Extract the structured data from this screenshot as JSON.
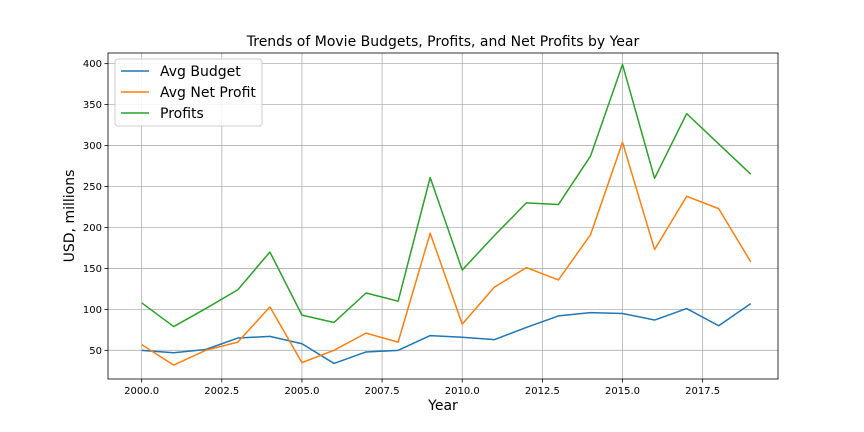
{
  "chart_data": {
    "type": "line",
    "title": "Trends of Movie Budgets, Profits, and Net Profits by Year",
    "xlabel": "Year",
    "ylabel": "USD, millions",
    "xlim": [
      1998.95,
      2019.85
    ],
    "ylim": [
      15,
      413
    ],
    "x_ticks": [
      2000.0,
      2002.5,
      2005.0,
      2007.5,
      2010.0,
      2012.5,
      2015.0,
      2017.5
    ],
    "x_tick_labels": [
      "2000.0",
      "2002.5",
      "2005.0",
      "2007.5",
      "2010.0",
      "2012.5",
      "2015.0",
      "2017.5"
    ],
    "y_ticks": [
      50,
      100,
      150,
      200,
      250,
      300,
      350,
      400
    ],
    "y_tick_labels": [
      "50",
      "100",
      "150",
      "200",
      "250",
      "300",
      "350",
      "400"
    ],
    "grid": true,
    "legend_position": "top-left",
    "x": [
      2000,
      2001,
      2002,
      2003,
      2004,
      2005,
      2006,
      2007,
      2008,
      2009,
      2010,
      2011,
      2012,
      2013,
      2014,
      2015,
      2016,
      2017,
      2018,
      2019
    ],
    "series": [
      {
        "name": "Avg Budget",
        "color": "#1f77b4",
        "values": [
          50,
          47,
          51,
          65,
          67,
          58,
          34,
          48,
          50,
          68,
          66,
          63,
          78,
          92,
          96,
          95,
          87,
          101,
          80,
          107
        ]
      },
      {
        "name": "Avg Net Profit",
        "color": "#ff7f0e",
        "values": [
          57,
          32,
          50,
          60,
          103,
          35,
          50,
          71,
          60,
          193,
          82,
          127,
          151,
          136,
          191,
          304,
          173,
          238,
          223,
          158
        ]
      },
      {
        "name": "Profits",
        "color": "#2ca02c",
        "values": [
          108,
          79,
          101,
          124,
          170,
          93,
          84,
          120,
          110,
          261,
          148,
          190,
          230,
          228,
          287,
          399,
          260,
          339,
          302,
          265
        ]
      }
    ]
  }
}
